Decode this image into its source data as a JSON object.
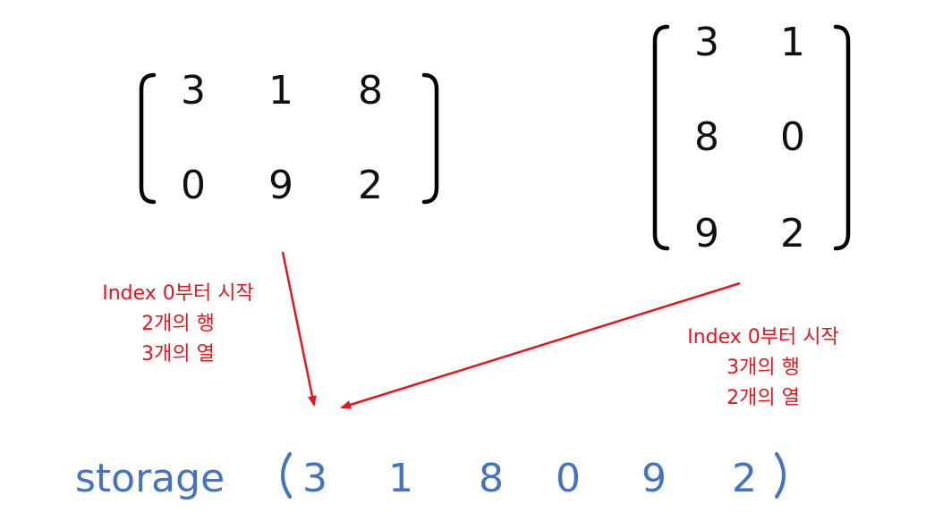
{
  "matrix_a": {
    "rows": [
      [
        "3",
        "1",
        "8"
      ],
      [
        "0",
        "9",
        "2"
      ]
    ]
  },
  "matrix_b": {
    "rows": [
      [
        "3",
        "1"
      ],
      [
        "8",
        "0"
      ],
      [
        "9",
        "2"
      ]
    ]
  },
  "note_a": {
    "lines": [
      "Index 0부터 시작",
      "2개의 행",
      "3개의 열"
    ]
  },
  "note_b": {
    "lines": [
      "Index 0부터 시작",
      "3개의 행",
      "2개의 열"
    ]
  },
  "storage": {
    "label": "storage",
    "values": [
      "3",
      "1",
      "8",
      "0",
      "9",
      "2"
    ]
  },
  "colors": {
    "annotation": "#e8141b",
    "storage": "#4472c4",
    "matrix": "#111111"
  }
}
